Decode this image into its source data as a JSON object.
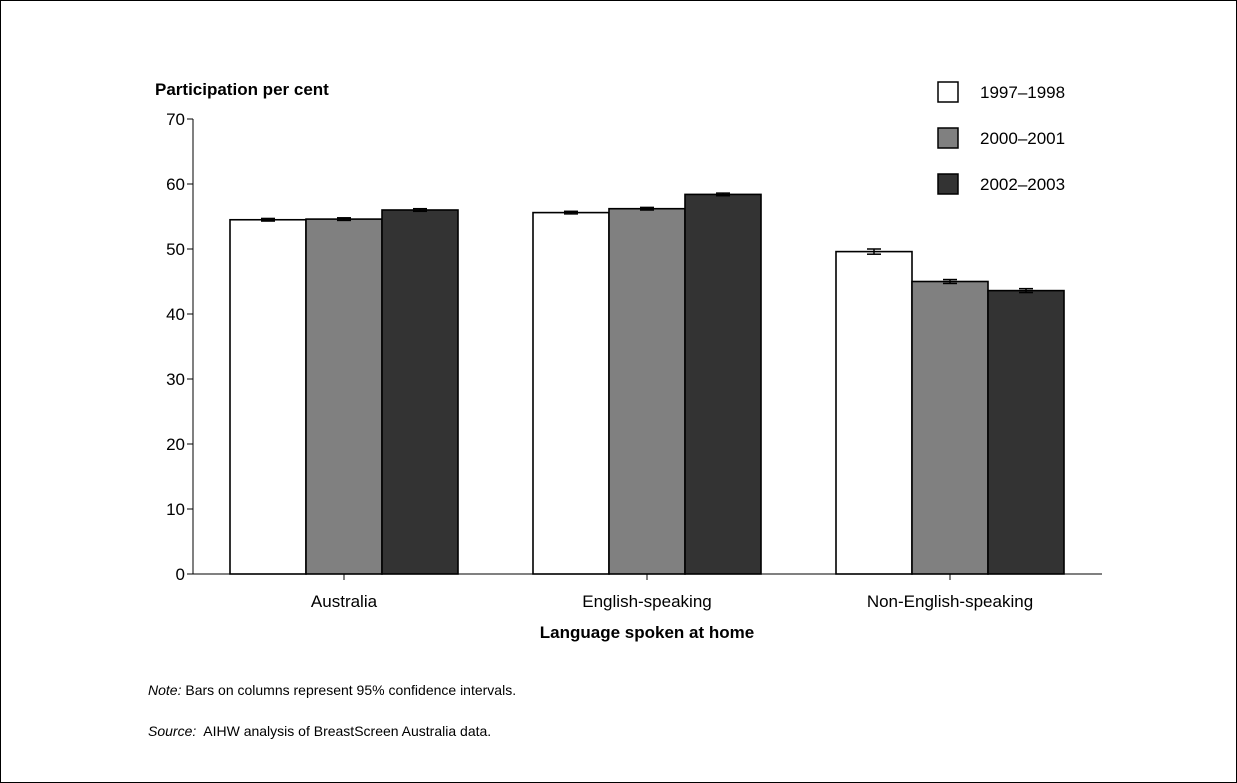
{
  "chart_data": {
    "type": "bar",
    "ylabel": "Participation per cent",
    "xlabel": "Language spoken at home",
    "categories": [
      "Australia",
      "English-speaking",
      "Non-English-speaking"
    ],
    "ylim": [
      0,
      70
    ],
    "yticks": [
      0,
      10,
      20,
      30,
      40,
      50,
      60,
      70
    ],
    "grid": false,
    "legend_position": "top-right",
    "series": [
      {
        "name": "1997–1998",
        "color": "#ffffff",
        "values": [
          54.5,
          55.6,
          49.6
        ],
        "ci": [
          0.2,
          0.2,
          0.4
        ]
      },
      {
        "name": "2000–2001",
        "color": "#808080",
        "values": [
          54.6,
          56.2,
          45.0
        ],
        "ci": [
          0.2,
          0.2,
          0.3
        ]
      },
      {
        "name": "2002–2003",
        "color": "#333333",
        "values": [
          56.0,
          58.4,
          43.6
        ],
        "ci": [
          0.2,
          0.2,
          0.3
        ]
      }
    ]
  },
  "note": {
    "label": "Note:",
    "text": " Bars on columns represent 95% confidence intervals."
  },
  "source": {
    "label": "Source:",
    "text": "  AIHW analysis of BreastScreen Australia data."
  }
}
